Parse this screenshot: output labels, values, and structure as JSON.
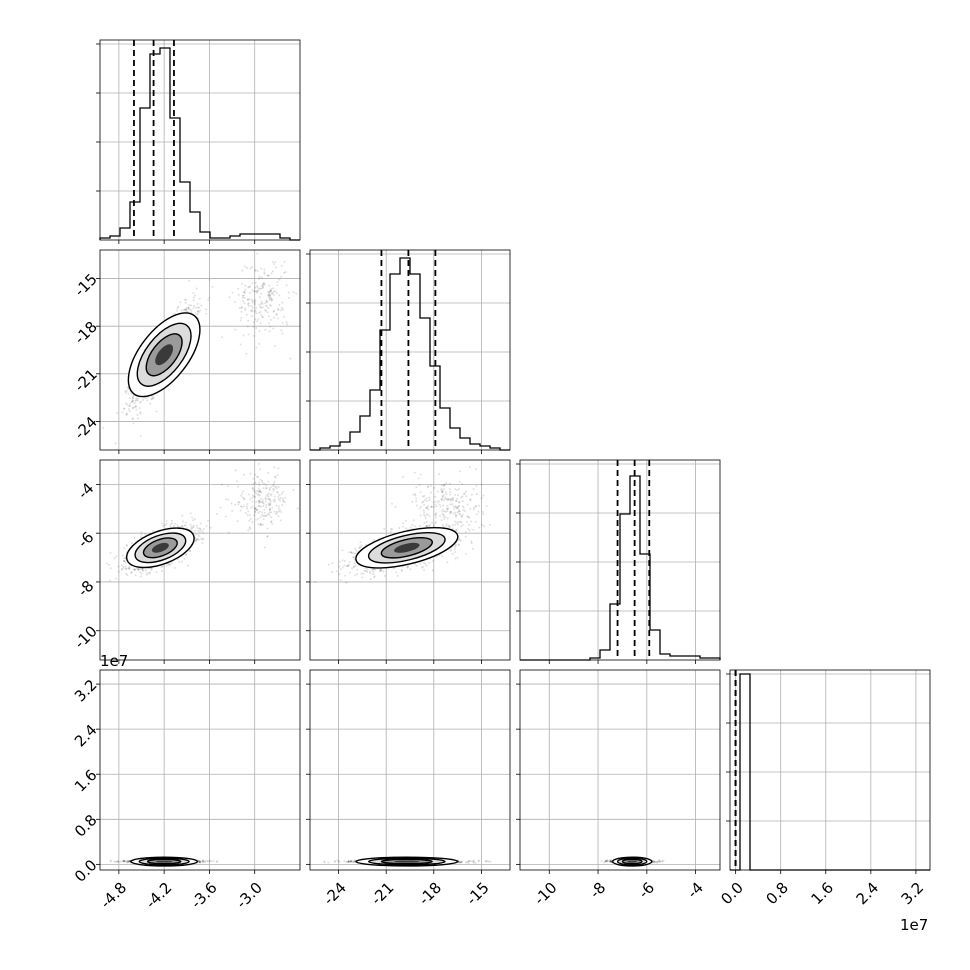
{
  "chart_data": {
    "type": "corner",
    "grid": true,
    "parameters": [
      {
        "ticks": [
          "-4.8",
          "-4.2",
          "-3.6",
          "-3.0"
        ],
        "tick_values": [
          -4.8,
          -4.2,
          -3.6,
          -3.0
        ],
        "range": [
          -5.05,
          -2.4
        ]
      },
      {
        "ticks": [
          "-24",
          "-21",
          "-18",
          "-15"
        ],
        "tick_values": [
          -24,
          -21,
          -18,
          -15
        ],
        "range": [
          -25.8,
          -13.2
        ]
      },
      {
        "ticks": [
          "-10",
          "-8",
          "-6",
          "-4"
        ],
        "tick_values": [
          -10,
          -8,
          -6,
          -4
        ],
        "range": [
          -11.2,
          -3.0
        ]
      },
      {
        "ticks": [
          "0.0",
          "0.8",
          "1.6",
          "2.4",
          "3.2"
        ],
        "tick_values": [
          0.0,
          0.8,
          1.6,
          2.4,
          3.2
        ],
        "range": [
          -0.1,
          3.45
        ]
      }
    ],
    "offset_label": "1e7",
    "histograms": [
      {
        "bin_edges": [
          -5.05,
          -4.9175,
          -4.785,
          -4.6525,
          -4.52,
          -4.3875,
          -4.255,
          -4.1225,
          -3.99,
          -3.8575,
          -3.725,
          -3.5925,
          -3.46,
          -3.3275,
          -3.195,
          -3.0625,
          -2.93,
          -2.7975,
          -2.665,
          -2.5325,
          -2.4
        ],
        "counts": [
          0.01,
          0.02,
          0.06,
          0.19,
          0.66,
          0.93,
          0.96,
          0.61,
          0.29,
          0.14,
          0.04,
          0.01,
          0.01,
          0.02,
          0.03,
          0.03,
          0.03,
          0.03,
          0.01,
          0.0
        ],
        "quantiles": [
          -4.6,
          -4.34,
          -4.07
        ]
      },
      {
        "bin_edges": [
          -25.8,
          -25.17,
          -24.54,
          -23.91,
          -23.28,
          -22.65,
          -22.02,
          -21.39,
          -20.76,
          -20.13,
          -19.5,
          -18.87,
          -18.24,
          -17.61,
          -16.98,
          -16.35,
          -15.72,
          -15.09,
          -14.46,
          -13.83,
          -13.2
        ],
        "counts": [
          0.0,
          0.01,
          0.02,
          0.04,
          0.09,
          0.17,
          0.3,
          0.6,
          0.88,
          0.96,
          0.88,
          0.66,
          0.42,
          0.21,
          0.11,
          0.06,
          0.03,
          0.02,
          0.01,
          0.0
        ],
        "quantiles": [
          -21.3,
          -19.6,
          -17.9
        ]
      },
      {
        "bin_edges": [
          -11.2,
          -10.79,
          -10.38,
          -9.97,
          -9.56,
          -9.15,
          -8.74,
          -8.33,
          -7.92,
          -7.51,
          -7.1,
          -6.69,
          -6.28,
          -5.87,
          -5.46,
          -5.05,
          -4.64,
          -4.23,
          -3.82,
          -3.41,
          -3.0
        ],
        "counts": [
          0.0,
          0.0,
          0.0,
          0.0,
          0.0,
          0.0,
          0.0,
          0.01,
          0.05,
          0.28,
          0.73,
          0.92,
          0.53,
          0.15,
          0.03,
          0.02,
          0.02,
          0.02,
          0.01,
          0.01
        ],
        "quantiles": [
          -7.2,
          -6.5,
          -5.9
        ]
      },
      {
        "bin_edges": [
          -0.1,
          0.0775,
          0.255,
          0.4325,
          0.61,
          0.7875,
          0.965,
          1.1425,
          1.32,
          1.4975,
          1.675,
          1.8525,
          2.03,
          2.2075,
          2.385,
          2.5625,
          2.74,
          2.9175,
          3.095,
          3.2725,
          3.45
        ],
        "counts": [
          0.0,
          0.98,
          0.0,
          0.0,
          0.0,
          0.0,
          0.0,
          0.0,
          0.0,
          0.0,
          0.0,
          0.0,
          0.0,
          0.0,
          0.0,
          0.0,
          0.0,
          0.0,
          0.0,
          0.0
        ],
        "quantiles": [
          0.0,
          0.0,
          0.0
        ]
      }
    ],
    "blobs": [
      {
        "i": 1,
        "j": 0,
        "cx": -4.2,
        "cy": -19.8,
        "sx": 0.2,
        "sy": 1.45,
        "rho": 0.85,
        "tail": {
          "cx": -2.9,
          "cy": -16.3,
          "sx": 0.18,
          "sy": 1.3
        }
      },
      {
        "i": 2,
        "j": 0,
        "cx": -4.25,
        "cy": -6.6,
        "sx": 0.22,
        "sy": 0.42,
        "rho": 0.6,
        "tail": {
          "cx": -2.9,
          "cy": -4.7,
          "sx": 0.18,
          "sy": 0.55
        }
      },
      {
        "i": 2,
        "j": 1,
        "cx": -19.7,
        "cy": -6.6,
        "sx": 1.6,
        "sy": 0.42,
        "rho": 0.6,
        "tail": {
          "cx": -17.2,
          "cy": -4.8,
          "sx": 1.1,
          "sy": 0.55
        }
      },
      {
        "i": 3,
        "j": 0,
        "cx": -4.2,
        "cy": 0.05,
        "sx": 0.22,
        "sy": 0.01,
        "rho": 0.0,
        "tail": null
      },
      {
        "i": 3,
        "j": 1,
        "cx": -19.7,
        "cy": 0.05,
        "sx": 1.6,
        "sy": 0.01,
        "rho": 0.0,
        "tail": null
      },
      {
        "i": 3,
        "j": 2,
        "cx": -6.6,
        "cy": 0.05,
        "sx": 0.4,
        "sy": 0.01,
        "rho": 0.0,
        "tail": null
      }
    ]
  }
}
